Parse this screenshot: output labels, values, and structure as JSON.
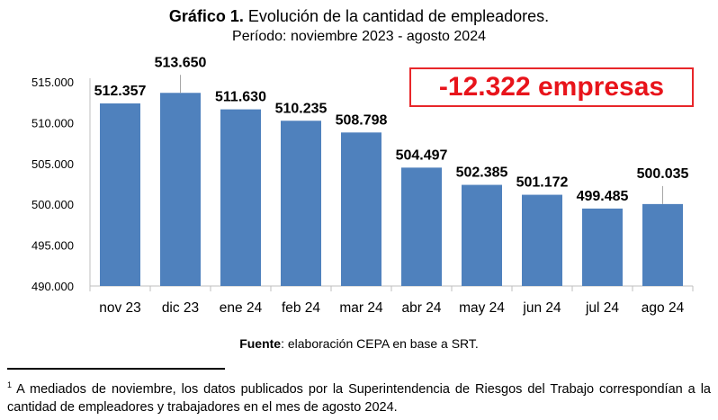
{
  "chart_data": {
    "type": "bar",
    "title_bold": "Gráfico 1.",
    "title": "Evolución de la cantidad de empleadores.",
    "subtitle": "Período: noviembre 2023 - agosto 2024",
    "categories": [
      "nov 23",
      "dic 23",
      "ene 24",
      "feb 24",
      "mar 24",
      "abr 24",
      "may 24",
      "jun 24",
      "jul 24",
      "ago 24"
    ],
    "values": [
      512357,
      513650,
      511630,
      510235,
      508798,
      504497,
      502385,
      501172,
      499485,
      500035
    ],
    "data_labels": [
      "512.357",
      "513.650",
      "511.630",
      "510.235",
      "508.798",
      "504.497",
      "502.385",
      "501.172",
      "499.485",
      "500.035"
    ],
    "ylim": [
      490000,
      515000
    ],
    "yticks": [
      490000,
      495000,
      500000,
      505000,
      510000,
      515000
    ],
    "ytick_labels": [
      "490.000",
      "495.000",
      "500.000",
      "505.000",
      "510.000",
      "515.000"
    ],
    "grid": false,
    "bar_color": "#4f81bd",
    "annotation": "-12.322 empresas",
    "annotation_color": "#e8141b"
  },
  "source_label": "Fuente",
  "source_text": ": elaboración CEPA en base a SRT.",
  "footnote_mark": "1",
  "footnote_text": " A mediados de noviembre, los datos publicados por la Superintendencia de Riesgos del Trabajo correspondían a la cantidad de empleadores y trabajadores en el mes de agosto 2024."
}
